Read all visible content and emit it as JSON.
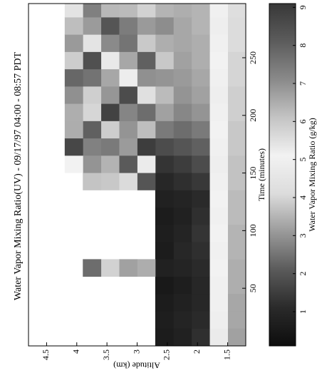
{
  "chart_data": {
    "type": "heatmap",
    "title": "Water Vapor Mixing Ratio(UV) - 09/17/97 04:00 - 08:57 PDT",
    "x_label": "Time (minutes)",
    "y_label": "Altitude (km)",
    "colorbar_label": "Water Vapor Mixing Ratio (g/kg)",
    "x": [
      7.5,
      22.5,
      37.5,
      52.5,
      67.5,
      82.5,
      97.5,
      112.5,
      127.5,
      142.5,
      157.5,
      172.5,
      187.5,
      202.5,
      217.5,
      232.5,
      247.5,
      262.5,
      277.5,
      292.5
    ],
    "y": [
      1.35,
      1.65,
      1.95,
      2.25,
      2.55,
      2.85,
      3.15,
      3.45,
      3.75,
      4.05
    ],
    "z": [
      [
        3.2,
        3.3,
        3.3,
        3.4,
        3.4,
        3.5,
        3.5,
        3.6,
        3.6,
        3.7,
        3.7,
        3.8,
        3.8,
        3.9,
        3.9,
        4.0,
        4.0,
        4.1,
        4.1,
        4.2
      ],
      [
        4.8,
        4.9,
        5.0,
        5.0,
        5.1,
        5.0,
        5.1,
        5.0,
        5.1,
        5.0,
        4.9,
        5.0,
        5.1,
        5.0,
        4.9,
        5.0,
        5.1,
        5.0,
        4.9,
        5.0
      ],
      [
        1.2,
        1.1,
        1.0,
        1.0,
        1.1,
        1.2,
        1.3,
        1.2,
        1.1,
        1.4,
        1.8,
        2.2,
        2.6,
        3.0,
        3.2,
        3.3,
        3.4,
        3.4,
        3.5,
        3.5
      ],
      [
        0.8,
        0.9,
        0.8,
        0.7,
        0.9,
        1.0,
        0.9,
        0.8,
        0.9,
        1.2,
        1.5,
        2.0,
        2.4,
        2.8,
        3.0,
        3.1,
        3.2,
        3.3,
        3.3,
        3.4
      ],
      [
        0.6,
        0.7,
        0.6,
        0.5,
        0.8,
        0.6,
        0.7,
        0.6,
        0.8,
        1.0,
        1.3,
        1.8,
        2.6,
        3.2,
        3.6,
        3.0,
        3.8,
        3.4,
        2.9,
        3.5
      ],
      [
        null,
        null,
        null,
        null,
        6.5,
        null,
        null,
        null,
        null,
        2.0,
        4.8,
        1.5,
        6.2,
        2.4,
        5.5,
        7.0,
        2.2,
        6.0,
        3.1,
        5.8
      ],
      [
        null,
        null,
        null,
        null,
        3.2,
        null,
        null,
        null,
        null,
        5.6,
        2.1,
        6.8,
        3.0,
        7.2,
        1.8,
        5.2,
        6.6,
        2.5,
        7.4,
        3.6
      ],
      [
        null,
        null,
        null,
        null,
        5.8,
        null,
        null,
        null,
        null,
        3.8,
        6.4,
        2.6,
        5.9,
        1.6,
        6.9,
        3.3,
        4.7,
        7.1,
        2.0,
        6.3
      ],
      [
        null,
        null,
        null,
        null,
        2.4,
        null,
        null,
        null,
        null,
        6.1,
        3.0,
        7.3,
        2.2,
        5.7,
        3.9,
        7.6,
        1.9,
        5.4,
        6.8,
        2.7
      ],
      [
        null,
        null,
        null,
        null,
        null,
        null,
        null,
        null,
        null,
        null,
        5.1,
        1.7,
        6.5,
        3.4,
        7.0,
        2.3,
        5.9,
        3.1,
        6.2,
        4.4
      ]
    ],
    "xlim": [
      0,
      297
    ],
    "ylim": [
      1.2,
      4.8
    ],
    "xticks": [
      50,
      100,
      150,
      200,
      250
    ],
    "yticks": [
      1.5,
      2,
      2.5,
      3,
      3.5,
      4,
      4.5
    ],
    "clim": [
      0.1,
      9.1
    ],
    "cticks": [
      1,
      2,
      3,
      4,
      5,
      6,
      7,
      8,
      9
    ],
    "colormap": [
      "#0d0d0d",
      "#2a2a2a",
      "#5a5a5a",
      "#9a9a9a",
      "#dcdcdc",
      "#f2f2f2",
      "#c4c4c4",
      "#8a8a8a",
      "#5c5c5c",
      "#383838"
    ]
  }
}
